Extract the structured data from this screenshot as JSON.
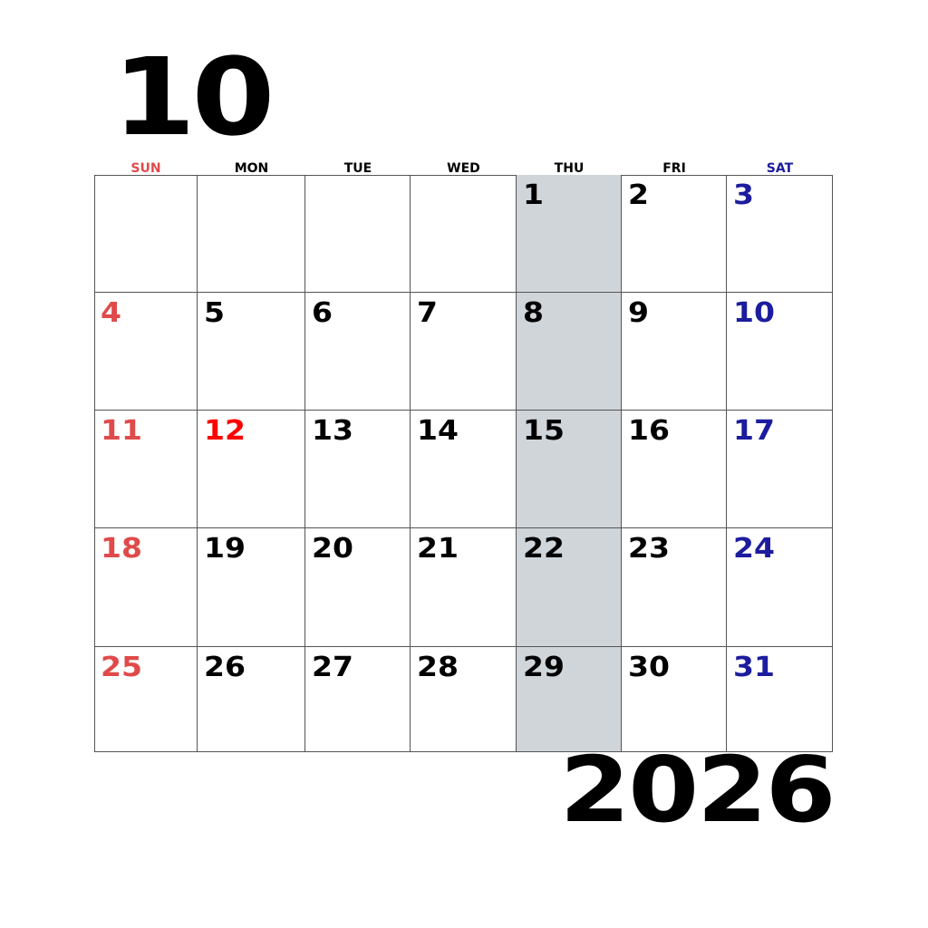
{
  "header": {
    "month": "10",
    "year": "2026"
  },
  "colors": {
    "sunday": "#e04a4a",
    "holiday": "#ff0000",
    "saturday": "#1c1c9e",
    "weekday": "#000000",
    "highlight": "#cfd5d9"
  },
  "weekdays": [
    "SUN",
    "MON",
    "TUE",
    "WED",
    "THU",
    "FRI",
    "SAT"
  ],
  "highlight_column": 4,
  "weeks": [
    [
      "",
      "",
      "",
      "",
      "1",
      "2",
      "3"
    ],
    [
      "4",
      "5",
      "6",
      "7",
      "8",
      "9",
      "10"
    ],
    [
      "11",
      "12",
      "13",
      "14",
      "15",
      "16",
      "17"
    ],
    [
      "18",
      "19",
      "20",
      "21",
      "22",
      "23",
      "24"
    ],
    [
      "25",
      "26",
      "27",
      "28",
      "29",
      "30",
      "31"
    ]
  ],
  "holidays": [
    "12"
  ]
}
